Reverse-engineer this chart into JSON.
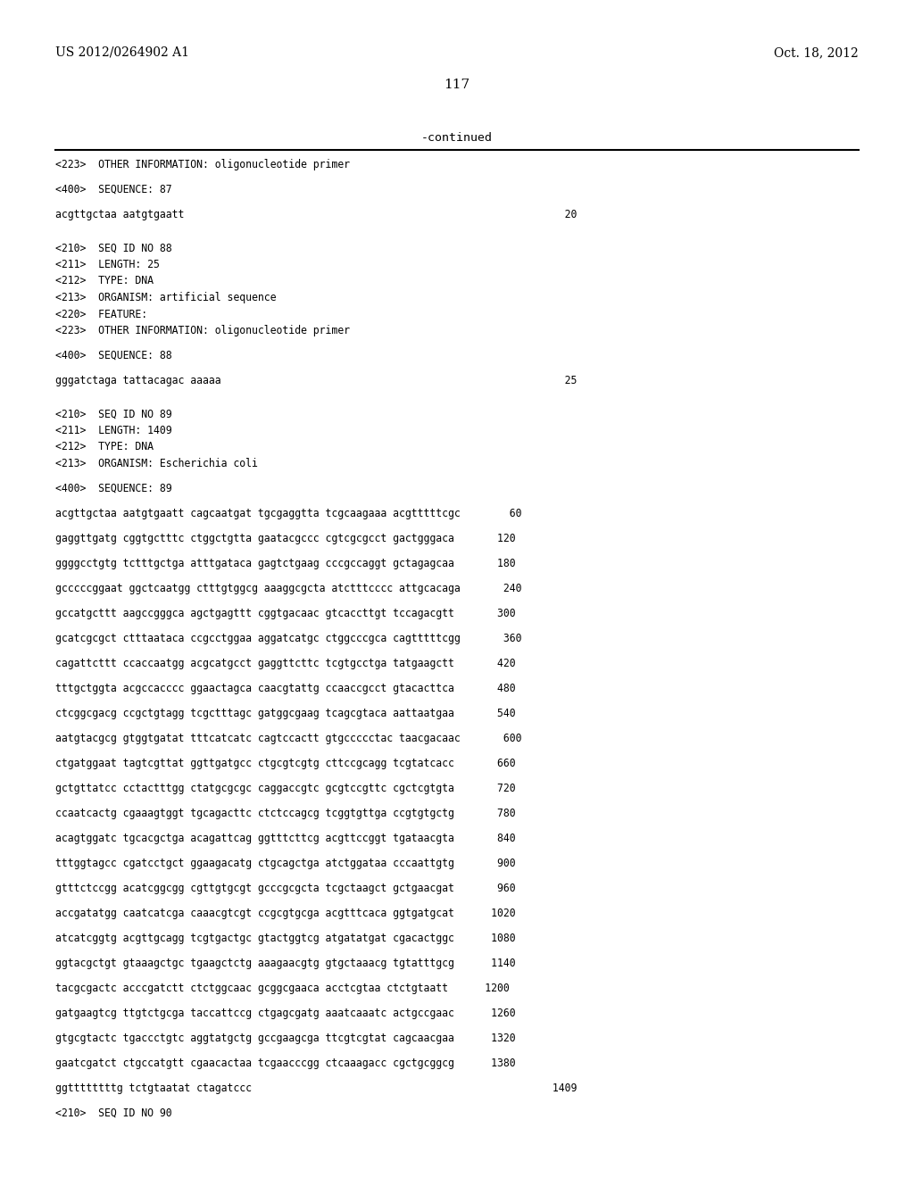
{
  "header_left": "US 2012/0264902 A1",
  "header_right": "Oct. 18, 2012",
  "page_number": "117",
  "continued_text": "-continued",
  "background_color": "#ffffff",
  "text_color": "#000000",
  "content_lines": [
    "<223>  OTHER INFORMATION: oligonucleotide primer",
    "",
    "<400>  SEQUENCE: 87",
    "",
    "acgttgctaa aatgtgaatt                                                              20",
    "",
    "",
    "<210>  SEQ ID NO 88",
    "<211>  LENGTH: 25",
    "<212>  TYPE: DNA",
    "<213>  ORGANISM: artificial sequence",
    "<220>  FEATURE:",
    "<223>  OTHER INFORMATION: oligonucleotide primer",
    "",
    "<400>  SEQUENCE: 88",
    "",
    "gggatctaga tattacagac aaaaa                                                        25",
    "",
    "",
    "<210>  SEQ ID NO 89",
    "<211>  LENGTH: 1409",
    "<212>  TYPE: DNA",
    "<213>  ORGANISM: Escherichia coli",
    "",
    "<400>  SEQUENCE: 89",
    "",
    "acgttgctaa aatgtgaatt cagcaatgat tgcgaggtta tcgcaagaaa acgtttttcgc        60",
    "",
    "gaggttgatg cggtgctttc ctggctgtta gaatacgccc cgtcgcgcct gactgggaca       120",
    "",
    "ggggcctgtg tctttgctga atttgataca gagtctgaag cccgccaggt gctagagcaa       180",
    "",
    "gcccccggaat ggctcaatgg ctttgtggcg aaaggcgcta atctttcccc attgcacaga       240",
    "",
    "gccatgcttt aagccgggca agctgagttt cggtgacaac gtcaccttgt tccagacgtt       300",
    "",
    "gcatcgcgct ctttaataca ccgcctggaa aggatcatgc ctggcccgca cagtttttcgg       360",
    "",
    "cagattcttt ccaccaatgg acgcatgcct gaggttcttc tcgtgcctga tatgaagctt       420",
    "",
    "tttgctggta acgccacccc ggaactagca caacgtattg ccaaccgcct gtacacttca       480",
    "",
    "ctcggcgacg ccgctgtagg tcgctttagc gatggcgaag tcagcgtaca aattaatgaa       540",
    "",
    "aatgtacgcg gtggtgatat tttcatcatc cagtccactt gtgccccctac taacgacaac       600",
    "",
    "ctgatggaat tagtcgttat ggttgatgcc ctgcgtcgtg cttccgcagg tcgtatcacc       660",
    "",
    "gctgttatcc cctactttgg ctatgcgcgc caggaccgtc gcgtccgttc cgctcgtgta       720",
    "",
    "ccaatcactg cgaaagtggt tgcagacttc ctctccagcg tcggtgttga ccgtgtgctg       780",
    "",
    "acagtggatc tgcacgctga acagattcag ggtttcttcg acgttccggt tgataacgta       840",
    "",
    "tttggtagcc cgatcctgct ggaagacatg ctgcagctga atctggataa cccaattgtg       900",
    "",
    "gtttctccgg acatcggcgg cgttgtgcgt gcccgcgcta tcgctaagct gctgaacgat       960",
    "",
    "accgatatgg caatcatcga caaacgtcgt ccgcgtgcga acgtttcaca ggtgatgcat      1020",
    "",
    "atcatcggtg acgttgcagg tcgtgactgc gtactggtcg atgatatgat cgacactggc      1080",
    "",
    "ggtacgctgt gtaaagctgc tgaagctctg aaagaacgtg gtgctaaacg tgtatttgcg      1140",
    "",
    "tacgcgactc acccgatctt ctctggcaac gcggcgaaca acctcgtaa ctctgtaatt      1200",
    "",
    "gatgaagtcg ttgtctgcga taccattccg ctgagcgatg aaatcaaatc actgccgaac      1260",
    "",
    "gtgcgtactc tgaccctgtc aggtatgctg gccgaagcga ttcgtcgtat cagcaacgaa      1320",
    "",
    "gaatcgatct ctgccatgtt cgaacactaa tcgaacccgg ctcaaagacc cgctgcggcg      1380",
    "",
    "ggttttttttg tctgtaatat ctagatccc                                                 1409",
    "",
    "<210>  SEQ ID NO 90"
  ]
}
